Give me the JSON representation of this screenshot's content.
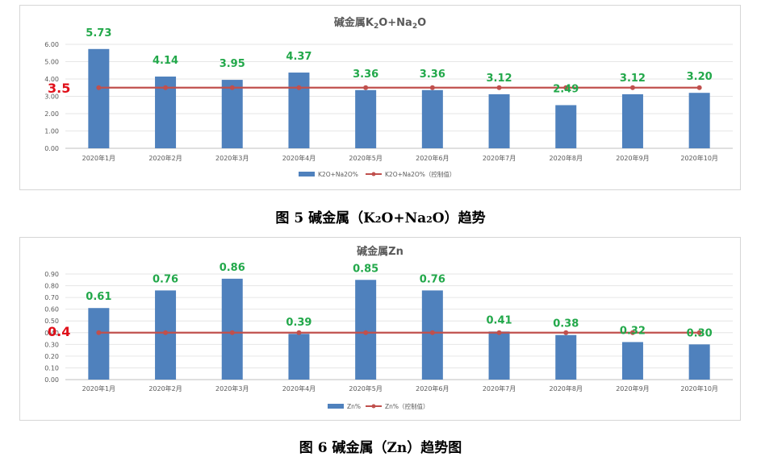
{
  "chart_data": [
    {
      "type": "bar",
      "title": "碱金属K₂O+Na₂O",
      "title_base": "碱金属K",
      "title_sub1": "2",
      "title_mid": "O+Na",
      "title_sub2": "2",
      "title_end": "O",
      "categories": [
        "2020年1月",
        "2020年2月",
        "2020年3月",
        "2020年4月",
        "2020年5月",
        "2020年6月",
        "2020年7月",
        "2020年8月",
        "2020年9月",
        "2020年10月"
      ],
      "values": [
        5.73,
        4.14,
        3.95,
        4.37,
        3.36,
        3.36,
        3.12,
        2.49,
        3.12,
        3.2
      ],
      "value_labels": [
        "5.73",
        "4.14",
        "3.95",
        "4.37",
        "3.36",
        "3.36",
        "3.12",
        "2.49",
        "3.12",
        "3.20"
      ],
      "control_value": 3.5,
      "control_label": "3.5",
      "ylim": [
        0,
        6
      ],
      "yticks": [
        "0.00",
        "1.00",
        "2.00",
        "3.00",
        "4.00",
        "5.00",
        "6.00"
      ],
      "ytick_step": 1,
      "legend": {
        "bar_series": "K2O+Na2O%",
        "line_series": "K2O+Na2O%（控制值）"
      },
      "caption": "图 5 碱金属（K₂O+Na₂O）趋势",
      "caption_base": "图 5 碱金属（K",
      "caption_sub1": "2",
      "caption_mid": "O+Na",
      "caption_sub2": "2",
      "caption_end": "O）趋势",
      "colors": {
        "bar": "#4f81bd",
        "line": "#c0504d",
        "label": "#22a84a",
        "control": "#e0101a"
      }
    },
    {
      "type": "bar",
      "title": "碱金属Zn",
      "categories": [
        "2020年1月",
        "2020年2月",
        "2020年3月",
        "2020年4月",
        "2020年5月",
        "2020年6月",
        "2020年7月",
        "2020年8月",
        "2020年9月",
        "2020年10月"
      ],
      "values": [
        0.61,
        0.76,
        0.86,
        0.39,
        0.85,
        0.76,
        0.41,
        0.38,
        0.32,
        0.3
      ],
      "value_labels": [
        "0.61",
        "0.76",
        "0.86",
        "0.39",
        "0.85",
        "0.76",
        "0.41",
        "0.38",
        "0.32",
        "0.30"
      ],
      "control_value": 0.4,
      "control_label": "0.4",
      "ylim": [
        0,
        0.9
      ],
      "yticks": [
        "0.00",
        "0.10",
        "0.20",
        "0.30",
        "0.40",
        "0.50",
        "0.60",
        "0.70",
        "0.80",
        "0.90"
      ],
      "ytick_step": 0.1,
      "legend": {
        "bar_series": "Zn%",
        "line_series": "Zn%（控制值）"
      },
      "caption": "图 6 碱金属（Zn）趋势图",
      "colors": {
        "bar": "#4f81bd",
        "line": "#c0504d",
        "label": "#22a84a",
        "control": "#e0101a"
      }
    }
  ]
}
